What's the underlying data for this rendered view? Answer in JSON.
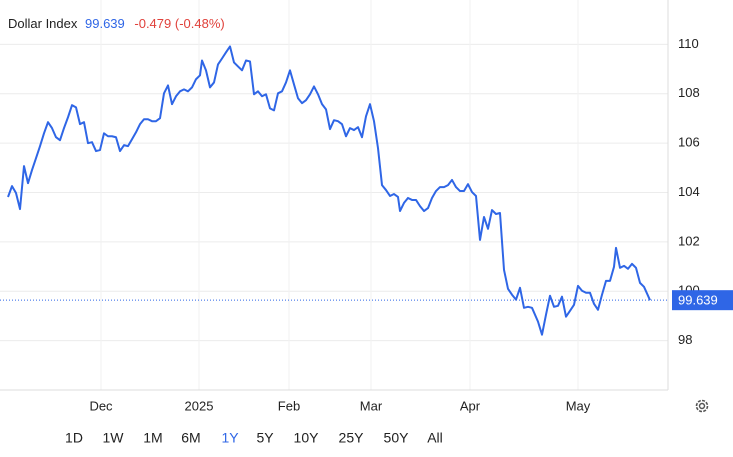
{
  "chart_data": {
    "type": "line",
    "title": "Dollar Index",
    "last_price": 99.639,
    "change_label": "-0.479 (-0.48%)",
    "color": "#2f66e6",
    "grid": true,
    "x": [
      0,
      1,
      2,
      3,
      4,
      5,
      6,
      7,
      8,
      9,
      10,
      11,
      12,
      13,
      14,
      15,
      16,
      17,
      18,
      19,
      20,
      21,
      22,
      23,
      24,
      25,
      26,
      27,
      28,
      29,
      30,
      31,
      32,
      33,
      34,
      35,
      36,
      37,
      38,
      39,
      40,
      41,
      42,
      43,
      44,
      45,
      46,
      47,
      48,
      48.5,
      49.5,
      50.5,
      51.5,
      52.5,
      53.5,
      54.5,
      55.5,
      56.5,
      57.5,
      58.5,
      59.5,
      60.5,
      61.5,
      62.5,
      63.5,
      64.5,
      65.5,
      66.5,
      67.5,
      68.5,
      69.5,
      70.5,
      71.5,
      72.5,
      73.5,
      74.5,
      75.5,
      76.5,
      77.5,
      78.5,
      79.5,
      80.5,
      81.5,
      82.5,
      83.5,
      84.5,
      85.5,
      86.5,
      87.5,
      88.5,
      89.5,
      90.5,
      91.5,
      92.5,
      93.5,
      94.5,
      95.5,
      96.5,
      97.5,
      98,
      99,
      100,
      101,
      102,
      103,
      104,
      105,
      106,
      107,
      108,
      109,
      110,
      111,
      112,
      113,
      114,
      115,
      116,
      117,
      118,
      119,
      120,
      121,
      122,
      123,
      124,
      125,
      126,
      127,
      128,
      129,
      130,
      131,
      132.5,
      133.5,
      134.5,
      135.5,
      136.5,
      137.5,
      138.5,
      139.5,
      140.5,
      141.5,
      142.5,
      143.5,
      144.5,
      145.5,
      146.5,
      147.5,
      148.5,
      149.5,
      150.5,
      151.5,
      152,
      153,
      154,
      155,
      156,
      157,
      158,
      159,
      160,
      160.5
    ],
    "values": [
      103.82,
      104.26,
      103.98,
      103.33,
      105.07,
      104.38,
      104.91,
      105.39,
      105.88,
      106.4,
      106.85,
      106.61,
      106.24,
      106.12,
      106.61,
      107.05,
      107.54,
      107.45,
      106.77,
      106.85,
      106.0,
      106.04,
      105.68,
      105.72,
      106.4,
      106.28,
      106.28,
      106.24,
      105.68,
      105.92,
      105.88,
      106.16,
      106.44,
      106.77,
      106.97,
      106.97,
      106.89,
      106.89,
      107.01,
      108.02,
      108.34,
      107.58,
      107.9,
      108.1,
      108.18,
      108.1,
      108.26,
      108.59,
      108.75,
      109.35,
      108.95,
      108.26,
      108.46,
      109.19,
      109.43,
      109.68,
      109.92,
      109.27,
      109.11,
      108.95,
      109.35,
      109.31,
      107.98,
      108.1,
      107.9,
      107.98,
      107.41,
      107.33,
      108.02,
      108.1,
      108.46,
      108.95,
      108.38,
      107.82,
      107.62,
      107.74,
      107.98,
      108.3,
      107.98,
      107.58,
      107.37,
      106.57,
      106.93,
      106.89,
      106.77,
      106.28,
      106.61,
      106.53,
      106.65,
      106.24,
      107.09,
      107.58,
      106.89,
      105.8,
      104.3,
      104.1,
      103.86,
      103.94,
      103.82,
      103.25,
      103.58,
      103.78,
      103.7,
      103.7,
      103.45,
      103.25,
      103.37,
      103.78,
      104.06,
      104.22,
      104.22,
      104.3,
      104.51,
      104.22,
      104.06,
      104.06,
      104.34,
      104.02,
      103.86,
      102.08,
      103.01,
      102.53,
      103.29,
      103.13,
      103.17,
      100.87,
      100.1,
      99.86,
      99.66,
      100.14,
      99.33,
      99.37,
      99.33,
      98.77,
      98.24,
      99.05,
      99.82,
      99.37,
      99.41,
      99.78,
      98.97,
      99.21,
      99.45,
      100.22,
      100.02,
      99.94,
      99.94,
      99.49,
      99.25,
      99.86,
      100.42,
      100.42,
      100.99,
      101.76,
      100.95,
      101.03,
      100.91,
      101.11,
      100.95,
      100.34,
      100.18,
      99.82,
      99.639
    ],
    "xlim": [
      -2,
      165
    ],
    "xticks": [
      {
        "value": 23.25,
        "label": "Dec"
      },
      {
        "value": 47.75,
        "label": "2025"
      },
      {
        "value": 70.25,
        "label": "Feb"
      },
      {
        "value": 90.75,
        "label": "Mar"
      },
      {
        "value": 115.5,
        "label": "Apr"
      },
      {
        "value": 142.5,
        "label": "May"
      }
    ],
    "ylim": [
      96,
      111.8
    ],
    "yticks": [
      98,
      100,
      102,
      104,
      106,
      108,
      110
    ],
    "range_buttons": [
      "1D",
      "1W",
      "1M",
      "6M",
      "1Y",
      "5Y",
      "10Y",
      "25Y",
      "50Y",
      "All"
    ],
    "active_range": "1Y"
  }
}
